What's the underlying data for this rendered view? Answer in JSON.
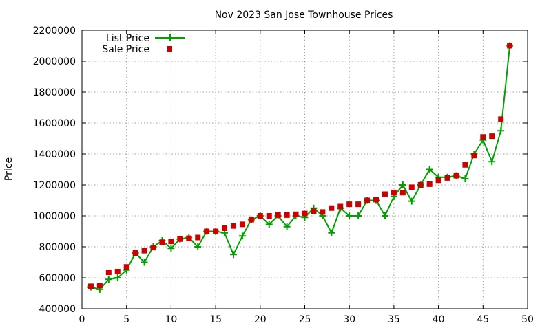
{
  "chart_data": {
    "type": "line",
    "title": "Nov 2023 San Jose Townhouse Prices",
    "xlabel": "",
    "ylabel": "Price",
    "xlim": [
      0,
      50
    ],
    "ylim": [
      400000,
      2200000
    ],
    "x_ticks": [
      0,
      5,
      10,
      15,
      20,
      25,
      30,
      35,
      40,
      45,
      50
    ],
    "y_ticks": [
      400000,
      600000,
      800000,
      1000000,
      1200000,
      1400000,
      1600000,
      1800000,
      2000000,
      2200000
    ],
    "grid": true,
    "legend_position": "top-left",
    "series": [
      {
        "name": "List Price",
        "style": "line+cross",
        "color": "#00a000",
        "x": [
          1,
          2,
          3,
          4,
          5,
          6,
          7,
          8,
          9,
          10,
          11,
          12,
          13,
          14,
          15,
          16,
          17,
          18,
          19,
          20,
          21,
          22,
          23,
          24,
          25,
          26,
          27,
          28,
          29,
          30,
          31,
          32,
          33,
          34,
          35,
          36,
          37,
          38,
          39,
          40,
          41,
          42,
          43,
          44,
          45,
          46,
          47,
          48
        ],
        "values": [
          540000,
          525000,
          590000,
          600000,
          650000,
          760000,
          700000,
          800000,
          840000,
          790000,
          850000,
          860000,
          800000,
          900000,
          900000,
          890000,
          750000,
          870000,
          975000,
          1000000,
          945000,
          1000000,
          930000,
          1000000,
          990000,
          1050000,
          1000000,
          890000,
          1050000,
          1000000,
          1000000,
          1100000,
          1100000,
          1000000,
          1125000,
          1200000,
          1095000,
          1200000,
          1300000,
          1250000,
          1250000,
          1260000,
          1240000,
          1400000,
          1490000,
          1350000,
          1550000,
          2100000
        ]
      },
      {
        "name": "Sale Price",
        "style": "point-square",
        "color": "#cc0000",
        "x": [
          1,
          2,
          3,
          4,
          5,
          6,
          7,
          8,
          9,
          10,
          11,
          12,
          13,
          14,
          15,
          16,
          17,
          18,
          19,
          20,
          21,
          22,
          23,
          24,
          25,
          26,
          27,
          28,
          29,
          30,
          31,
          32,
          33,
          34,
          35,
          36,
          37,
          38,
          39,
          40,
          41,
          42,
          43,
          44,
          45,
          46,
          47,
          48
        ],
        "values": [
          545000,
          550000,
          635000,
          640000,
          670000,
          760000,
          775000,
          795000,
          830000,
          835000,
          850000,
          855000,
          860000,
          900000,
          900000,
          920000,
          935000,
          945000,
          975000,
          1000000,
          1000000,
          1005000,
          1005000,
          1010000,
          1015000,
          1030000,
          1025000,
          1050000,
          1060000,
          1075000,
          1075000,
          1100000,
          1105000,
          1140000,
          1150000,
          1150000,
          1185000,
          1200000,
          1205000,
          1230000,
          1245000,
          1260000,
          1330000,
          1390000,
          1510000,
          1515000,
          1625000,
          2100000
        ]
      }
    ]
  }
}
